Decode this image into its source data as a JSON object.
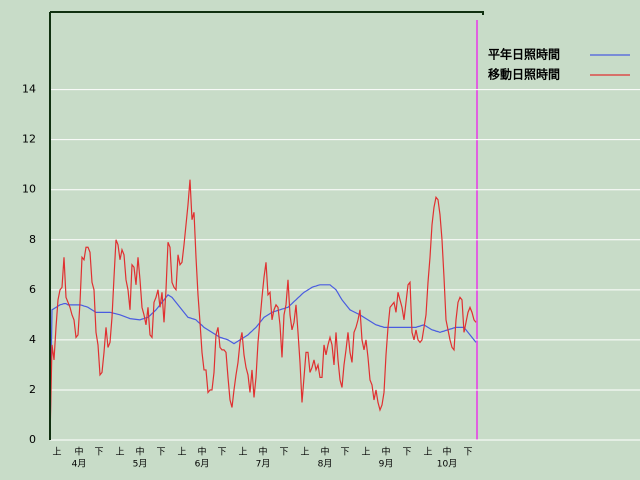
{
  "chart_data": {
    "type": "line",
    "series": [
      {
        "name": "平年日照時間",
        "color": "#4a5ce0",
        "values": [
          0,
          5.2,
          5.25,
          5.3,
          5.35,
          5.4,
          5.42,
          5.45,
          5.45,
          5.4,
          5.4,
          5.4,
          5.4,
          5.4,
          5.4,
          5.4,
          5.38,
          5.35,
          5.33,
          5.3,
          5.25,
          5.2,
          5.15,
          5.1,
          5.1,
          5.1,
          5.1,
          5.1,
          5.1,
          5.1,
          5.1,
          5.08,
          5.06,
          5.04,
          5.02,
          5.0,
          4.97,
          4.94,
          4.91,
          4.88,
          4.85,
          4.84,
          4.83,
          4.82,
          4.81,
          4.8,
          4.83,
          4.85,
          4.88,
          4.9,
          4.97,
          5.05,
          5.12,
          5.2,
          5.3,
          5.4,
          5.5,
          5.6,
          5.7,
          5.8,
          5.75,
          5.7,
          5.6,
          5.5,
          5.4,
          5.3,
          5.2,
          5.1,
          5.0,
          4.9,
          4.88,
          4.85,
          4.83,
          4.8,
          4.72,
          4.65,
          4.58,
          4.5,
          4.45,
          4.4,
          4.35,
          4.3,
          4.25,
          4.2,
          4.15,
          4.1,
          4.08,
          4.05,
          4.03,
          4.0,
          3.95,
          3.9,
          3.85,
          3.9,
          3.95,
          4.0,
          4.05,
          4.1,
          4.15,
          4.2,
          4.28,
          4.35,
          4.43,
          4.5,
          4.6,
          4.7,
          4.8,
          4.9,
          4.95,
          5.0,
          5.05,
          5.1,
          5.13,
          5.15,
          5.18,
          5.2,
          5.23,
          5.25,
          5.28,
          5.3,
          5.38,
          5.45,
          5.53,
          5.6,
          5.68,
          5.75,
          5.83,
          5.9,
          5.95,
          6.0,
          6.05,
          6.1,
          6.13,
          6.15,
          6.18,
          6.2,
          6.2,
          6.2,
          6.2,
          6.2,
          6.2,
          6.13,
          6.07,
          6.0,
          5.87,
          5.73,
          5.6,
          5.5,
          5.4,
          5.3,
          5.2,
          5.16,
          5.12,
          5.08,
          5.04,
          5.0,
          4.95,
          4.9,
          4.85,
          4.8,
          4.75,
          4.7,
          4.65,
          4.6,
          4.58,
          4.55,
          4.53,
          4.5,
          4.5,
          4.5,
          4.5,
          4.5,
          4.5,
          4.5,
          4.5,
          4.5,
          4.5,
          4.5,
          4.5,
          4.5,
          4.5,
          4.5,
          4.5,
          4.5,
          4.53,
          4.55,
          4.58,
          4.6,
          4.55,
          4.5,
          4.45,
          4.4,
          4.38,
          4.35,
          4.33,
          4.3,
          4.33,
          4.35,
          4.38,
          4.4,
          4.43,
          4.45,
          4.48,
          4.5,
          4.5,
          4.5,
          4.5,
          4.5,
          4.4,
          4.3,
          4.2,
          4.1,
          4.0,
          3.9
        ]
      },
      {
        "name": "移動日照時間",
        "color": "#e03030",
        "values": [
          0,
          3.8,
          3.2,
          4.5,
          5.6,
          6.0,
          6.1,
          7.3,
          5.7,
          5.5,
          5.3,
          5.0,
          4.8,
          4.1,
          4.2,
          5.5,
          7.3,
          7.2,
          7.7,
          7.7,
          7.5,
          6.3,
          6.0,
          4.3,
          3.8,
          2.6,
          2.7,
          3.5,
          4.5,
          3.7,
          3.9,
          4.9,
          6.5,
          8.0,
          7.8,
          7.2,
          7.6,
          7.4,
          6.4,
          6.0,
          5.2,
          7.0,
          6.9,
          6.2,
          7.3,
          6.4,
          5.3,
          5.0,
          4.6,
          5.3,
          4.2,
          4.1,
          5.5,
          5.7,
          6.0,
          5.3,
          5.9,
          4.7,
          6.0,
          7.9,
          7.7,
          6.3,
          6.1,
          6.0,
          7.4,
          7.0,
          7.1,
          7.8,
          8.6,
          9.4,
          10.4,
          8.8,
          9.1,
          7.3,
          5.8,
          4.7,
          3.5,
          2.8,
          2.8,
          1.9,
          2.0,
          2.0,
          2.7,
          4.2,
          4.5,
          3.7,
          3.6,
          3.6,
          3.5,
          2.5,
          1.6,
          1.3,
          2.0,
          2.6,
          3.1,
          3.9,
          4.3,
          3.4,
          2.9,
          2.6,
          1.9,
          2.8,
          1.7,
          2.5,
          3.9,
          4.8,
          5.7,
          6.5,
          7.1,
          5.8,
          5.9,
          4.8,
          5.2,
          5.4,
          5.3,
          4.6,
          3.3,
          5.0,
          5.4,
          6.4,
          5.0,
          4.4,
          4.7,
          5.4,
          4.3,
          3.1,
          1.5,
          2.5,
          3.5,
          3.5,
          2.7,
          2.9,
          3.2,
          2.8,
          3.0,
          2.5,
          2.5,
          3.8,
          3.4,
          3.8,
          4.1,
          3.8,
          3.0,
          4.3,
          3.2,
          2.4,
          2.1,
          3.0,
          3.6,
          4.3,
          3.5,
          3.1,
          4.3,
          4.5,
          4.8,
          5.2,
          4.0,
          3.6,
          4.0,
          3.3,
          2.4,
          2.2,
          1.6,
          2.0,
          1.5,
          1.2,
          1.4,
          1.9,
          3.4,
          4.5,
          5.3,
          5.4,
          5.5,
          5.1,
          5.9,
          5.6,
          5.3,
          4.8,
          5.5,
          6.2,
          6.3,
          4.3,
          4.0,
          4.4,
          4.0,
          3.9,
          4.0,
          4.5,
          5.0,
          6.3,
          7.3,
          8.6,
          9.3,
          9.7,
          9.6,
          9.0,
          8.0,
          6.5,
          4.8,
          4.4,
          4.0,
          3.7,
          3.6,
          4.8,
          5.5,
          5.7,
          5.6,
          4.3,
          4.7,
          5.1,
          5.3,
          5.1,
          4.8,
          4.7
        ]
      }
    ],
    "xlim": [
      0,
      214
    ],
    "xticks": [
      {
        "value": 3.5,
        "label": "上"
      },
      {
        "value": 14.5,
        "label": "中"
      },
      {
        "value": 24.5,
        "label": "下"
      },
      {
        "value": 35,
        "label": "上"
      },
      {
        "value": 45,
        "label": "中"
      },
      {
        "value": 55.5,
        "label": "下"
      },
      {
        "value": 66,
        "label": "上"
      },
      {
        "value": 76,
        "label": "中"
      },
      {
        "value": 86,
        "label": "下"
      },
      {
        "value": 96.5,
        "label": "上"
      },
      {
        "value": 106.5,
        "label": "中"
      },
      {
        "value": 117,
        "label": "下"
      },
      {
        "value": 127.5,
        "label": "上"
      },
      {
        "value": 137.5,
        "label": "中"
      },
      {
        "value": 147.5,
        "label": "下"
      },
      {
        "value": 158,
        "label": "上"
      },
      {
        "value": 168,
        "label": "中"
      },
      {
        "value": 178.5,
        "label": "下"
      },
      {
        "value": 189,
        "label": "上"
      },
      {
        "value": 198.5,
        "label": "中"
      },
      {
        "value": 209,
        "label": "下"
      }
    ],
    "month_labels": [
      {
        "value": 14.5,
        "label": "4月"
      },
      {
        "value": 45,
        "label": "5月"
      },
      {
        "value": 76,
        "label": "6月"
      },
      {
        "value": 106.5,
        "label": "7月"
      },
      {
        "value": 137.5,
        "label": "8月"
      },
      {
        "value": 168,
        "label": "9月"
      },
      {
        "value": 198.5,
        "label": "10月"
      }
    ],
    "ylim": [
      0,
      17.1
    ],
    "yticks": [
      0,
      2,
      4,
      6,
      8,
      10,
      12,
      14
    ],
    "grid": true,
    "legend": "top-right"
  }
}
